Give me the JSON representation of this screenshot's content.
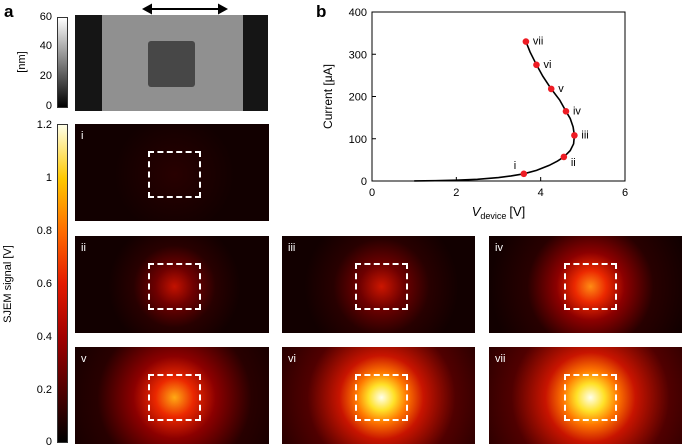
{
  "panel_a": {
    "letter": "a",
    "afm": {
      "unit_label": "[nm]",
      "colorbar_ticks": [
        "60",
        "40",
        "20",
        "0"
      ]
    },
    "sjem": {
      "axis_label": "SJEM signal [V]",
      "colorbar_ticks": [
        "1.2",
        "1",
        "0.8",
        "0.6",
        "0.4",
        "0.2",
        "0"
      ],
      "maps": [
        {
          "label": "i",
          "intensity": 0.0
        },
        {
          "label": "ii",
          "intensity": 0.25
        },
        {
          "label": "iii",
          "intensity": 0.4
        },
        {
          "label": "iv",
          "intensity": 0.5
        },
        {
          "label": "v",
          "intensity": 0.75
        },
        {
          "label": "vi",
          "intensity": 0.9
        },
        {
          "label": "vii",
          "intensity": 1.0
        }
      ]
    }
  },
  "panel_b": {
    "letter": "b",
    "chart_data": {
      "type": "line",
      "xlabel_main": "V",
      "xlabel_sub": "device",
      "xlabel_unit": "[V]",
      "ylabel": "Current [μA]",
      "xlim": [
        0,
        6
      ],
      "ylim": [
        0,
        400
      ],
      "xticks": [
        0,
        2,
        4,
        6
      ],
      "yticks": [
        0,
        100,
        200,
        300,
        400
      ],
      "curve": [
        [
          1.0,
          0.2
        ],
        [
          1.5,
          0.8
        ],
        [
          2.0,
          2
        ],
        [
          2.5,
          4
        ],
        [
          3.0,
          8
        ],
        [
          3.3,
          12
        ],
        [
          3.6,
          17
        ],
        [
          3.9,
          25
        ],
        [
          4.2,
          37
        ],
        [
          4.4,
          47
        ],
        [
          4.55,
          57
        ],
        [
          4.7,
          72
        ],
        [
          4.78,
          88
        ],
        [
          4.8,
          108
        ],
        [
          4.77,
          128
        ],
        [
          4.7,
          148
        ],
        [
          4.6,
          165
        ],
        [
          4.45,
          192
        ],
        [
          4.25,
          218
        ],
        [
          4.05,
          248
        ],
        [
          3.9,
          275
        ],
        [
          3.75,
          305
        ],
        [
          3.65,
          330
        ]
      ],
      "points": [
        {
          "label": "i",
          "x": 3.6,
          "y": 17
        },
        {
          "label": "ii",
          "x": 4.55,
          "y": 57
        },
        {
          "label": "iii",
          "x": 4.8,
          "y": 108
        },
        {
          "label": "iv",
          "x": 4.6,
          "y": 165
        },
        {
          "label": "v",
          "x": 4.25,
          "y": 218
        },
        {
          "label": "vi",
          "x": 3.9,
          "y": 275
        },
        {
          "label": "vii",
          "x": 3.65,
          "y": 330
        }
      ],
      "point_color": "#ee1c24",
      "line_color": "#000000"
    }
  }
}
